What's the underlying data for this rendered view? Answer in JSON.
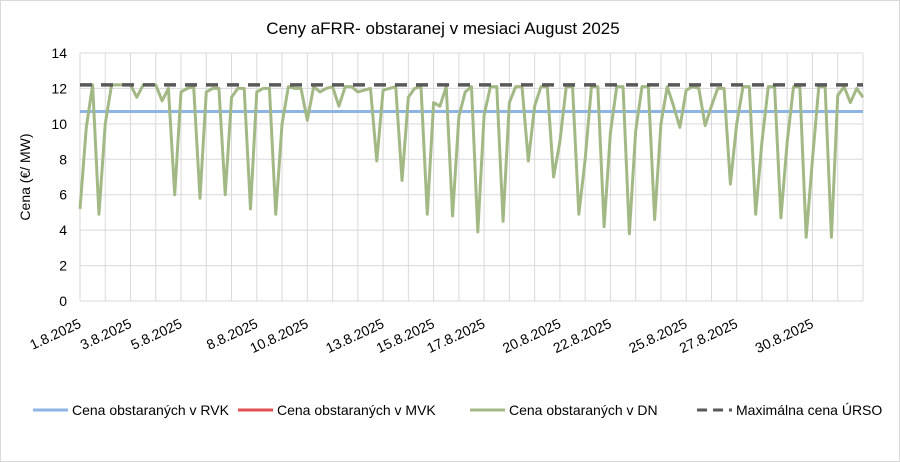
{
  "chart_data": {
    "type": "line",
    "title": "Ceny aFRR- obstaranej v mesiaci August 2025",
    "xlabel": "",
    "ylabel": "Cena (€/ MW)",
    "ylim": [
      0,
      14
    ],
    "yticks": [
      "0",
      "2",
      "4",
      "6",
      "8",
      "10",
      "12",
      "14"
    ],
    "xlim_days": [
      1,
      32
    ],
    "xtick_days": [
      1,
      3,
      5,
      8,
      10,
      13,
      15,
      17,
      20,
      22,
      25,
      27,
      30
    ],
    "xtick_labels": [
      "1.8.2025",
      "3.8.2025",
      "5.8.2025",
      "8.8.2025",
      "10.8.2025",
      "13.8.2025",
      "15.8.2025",
      "17.8.2025",
      "20.8.2025",
      "22.8.2025",
      "25.8.2025",
      "27.8.2025",
      "30.8.2025"
    ],
    "grid": true,
    "legend_position": "bottom",
    "samples_per_day": 4,
    "series": [
      {
        "name": "Cena obstaraných v RVK",
        "color": "#8eb4e3",
        "style": "solid",
        "values": [
          10.7,
          10.7
        ]
      },
      {
        "name": "Cena obstaraných v MVK",
        "color": "#e05252",
        "style": "solid",
        "values": []
      },
      {
        "name": "Cena obstaraných v DN",
        "color": "#a3b985",
        "style": "solid",
        "values": [
          5.2,
          9.8,
          12.2,
          4.9,
          10.0,
          12.2,
          12.2,
          12.2,
          12.2,
          11.5,
          12.2,
          12.2,
          12.2,
          11.3,
          12.0,
          6.0,
          11.8,
          12.0,
          12.1,
          5.8,
          11.8,
          12.0,
          12.0,
          6.0,
          11.5,
          12.0,
          12.0,
          5.2,
          11.8,
          12.0,
          12.0,
          4.9,
          10.0,
          12.1,
          12.0,
          12.0,
          10.2,
          12.1,
          11.8,
          12.0,
          12.1,
          11.0,
          12.1,
          12.1,
          11.8,
          11.9,
          12.0,
          7.9,
          11.9,
          12.0,
          12.1,
          6.8,
          11.5,
          12.0,
          12.1,
          4.9,
          11.2,
          11.0,
          12.1,
          4.8,
          10.4,
          11.8,
          12.1,
          3.9,
          10.5,
          12.1,
          12.1,
          4.5,
          11.2,
          12.1,
          12.1,
          7.9,
          11.0,
          12.1,
          12.1,
          7.0,
          9.0,
          12.1,
          12.1,
          4.9,
          8.0,
          12.1,
          12.1,
          4.2,
          9.5,
          12.1,
          12.1,
          3.8,
          9.6,
          12.1,
          12.1,
          4.6,
          10.0,
          12.1,
          11.0,
          9.8,
          11.9,
          12.1,
          12.0,
          9.9,
          11.0,
          12.0,
          12.0,
          6.6,
          10.0,
          12.1,
          12.1,
          4.9,
          9.0,
          12.1,
          12.1,
          4.7,
          9.0,
          12.1,
          12.1,
          3.6,
          8.0,
          12.1,
          12.1,
          3.6,
          11.6,
          12.1,
          11.2,
          12.0,
          11.5
        ]
      },
      {
        "name": "Maximálna cena ÚRSO",
        "color": "#595959",
        "style": "dashed",
        "values": [
          12.2,
          12.2
        ]
      }
    ]
  }
}
